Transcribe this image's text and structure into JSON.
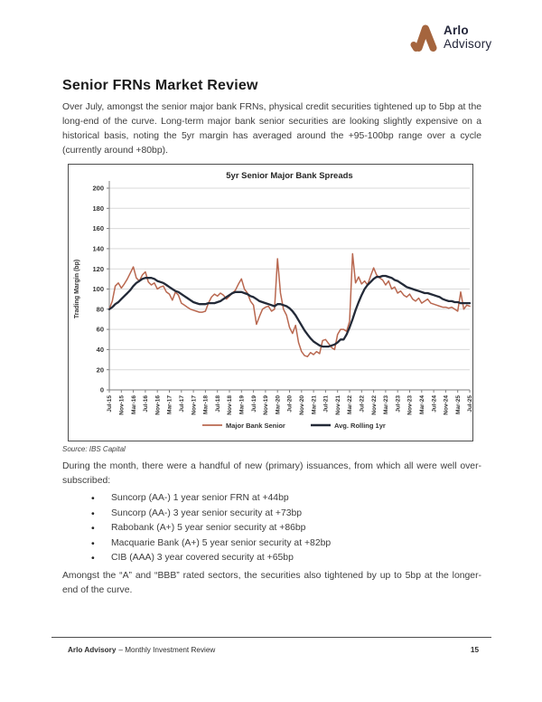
{
  "page": {
    "logo": {
      "line1": "Arlo",
      "line2": "Advisory",
      "mark_color": "#a5653e",
      "text_color": "#23263a"
    },
    "title": "Senior FRNs Market Review",
    "para1": "Over July, amongst the senior major bank FRNs, physical credit securities tightened up to 5bp at the long-end of the curve. Long-term major bank senior securities are looking slightly expensive on a historical basis, noting the 5yr margin has averaged around the +95-100bp range over a cycle (currently around +80bp).",
    "source": "Source: IBS Capital",
    "para2": "During the month, there were a handful of new (primary) issuances, from which all were well over-subscribed:",
    "bullets": [
      "Suncorp (AA-) 1 year senior FRN at +44bp",
      "Suncorp (AA-) 3 year senior security at +73bp",
      "Rabobank (A+) 5 year senior security at +86bp",
      "Macquarie Bank (A+) 5 year senior security at +82bp",
      "CIB (AAA) 3 year covered security at +65bp"
    ],
    "para3": "Amongst the “A” and “BBB” rated sectors, the securities also tightened by up to 5bp at the longer-end of the curve.",
    "footer": {
      "brand": "Arlo Advisory",
      "text": "– Monthly Investment Review",
      "page_number": "15"
    }
  },
  "chart_data": {
    "type": "line",
    "title": "5yr Senior Major Bank Spreads",
    "xlabel": "",
    "ylabel": "Trading Margin (bp)",
    "ylim": [
      0,
      200
    ],
    "ytick_step": 20,
    "grid": true,
    "legend_position": "bottom",
    "x_labels": [
      "Jul-15",
      "Nov-15",
      "Mar-16",
      "Jul-16",
      "Nov-16",
      "Mar-17",
      "Jul-17",
      "Nov-17",
      "Mar-18",
      "Jul-18",
      "Nov-18",
      "Mar-19",
      "Jul-19",
      "Nov-19",
      "Mar-20",
      "Jul-20",
      "Nov-20",
      "Mar-21",
      "Jul-21",
      "Nov-21",
      "Mar-22",
      "Jul-22",
      "Nov-22",
      "Mar-23",
      "Jul-23",
      "Nov-23",
      "Mar-24",
      "Jul-24",
      "Nov-24",
      "Mar-25",
      "Jul-25"
    ],
    "x_label_every_n_points": 4,
    "series": [
      {
        "name": "Major Bank Senior",
        "color": "#b96850",
        "width": 1.5,
        "values": [
          80,
          88,
          103,
          106,
          101,
          105,
          110,
          116,
          122,
          111,
          108,
          114,
          117,
          107,
          104,
          106,
          100,
          102,
          103,
          97,
          95,
          89,
          97,
          94,
          86,
          84,
          82,
          80,
          79,
          78,
          77,
          77,
          78,
          86,
          92,
          95,
          93,
          96,
          94,
          90,
          93,
          96,
          99,
          105,
          110,
          100,
          96,
          88,
          84,
          65,
          73,
          80,
          82,
          83,
          78,
          80,
          130,
          96,
          80,
          74,
          62,
          56,
          64,
          47,
          38,
          34,
          33,
          37,
          35,
          38,
          36,
          49,
          50,
          46,
          42,
          40,
          55,
          60,
          60,
          58,
          68,
          135,
          106,
          112,
          105,
          108,
          104,
          113,
          121,
          114,
          111,
          109,
          104,
          108,
          100,
          102,
          96,
          98,
          94,
          92,
          95,
          90,
          88,
          91,
          86,
          88,
          90,
          86,
          85,
          84,
          83,
          82,
          82,
          81,
          82,
          80,
          78,
          97,
          80,
          84,
          83
        ]
      },
      {
        "name": "Avg. Rolling 1yr",
        "color": "#232a38",
        "width": 2.3,
        "values": [
          80,
          82,
          85,
          87,
          90,
          93,
          96,
          99,
          103,
          106,
          108,
          110,
          111,
          111,
          111,
          110,
          108,
          107,
          106,
          104,
          102,
          100,
          98,
          97,
          95,
          93,
          91,
          89,
          87,
          86,
          85,
          85,
          85,
          86,
          86,
          86,
          87,
          88,
          90,
          92,
          94,
          96,
          97,
          97,
          97,
          96,
          95,
          93,
          92,
          90,
          88,
          87,
          86,
          85,
          84,
          83,
          85,
          85,
          84,
          83,
          81,
          78,
          74,
          69,
          64,
          59,
          55,
          51,
          48,
          46,
          44,
          43,
          43,
          43,
          44,
          45,
          47,
          50,
          50,
          55,
          62,
          70,
          79,
          87,
          94,
          100,
          104,
          107,
          110,
          112,
          112,
          113,
          113,
          112,
          111,
          109,
          108,
          106,
          104,
          102,
          101,
          100,
          99,
          98,
          97,
          96,
          96,
          95,
          94,
          93,
          92,
          90,
          89,
          88,
          88,
          87,
          87,
          86,
          86,
          86,
          86
        ]
      }
    ]
  }
}
